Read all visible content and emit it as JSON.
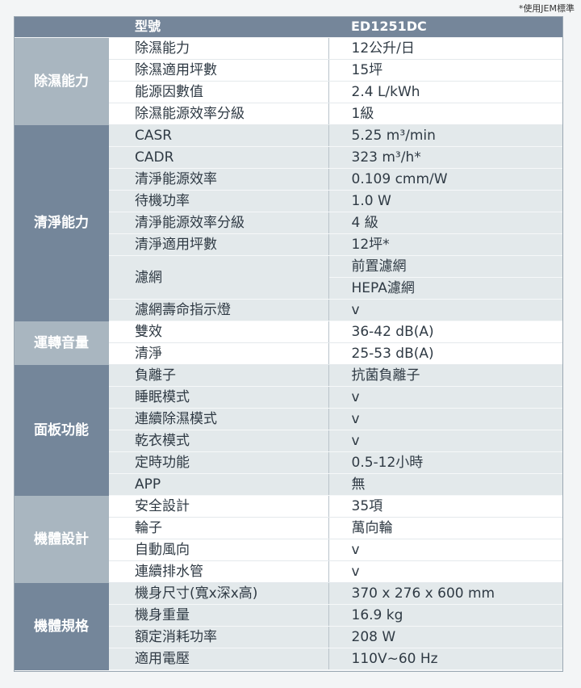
{
  "note": "*使用JEM標準",
  "header": {
    "label": "型號",
    "value": "ED1251DC"
  },
  "colors": {
    "header": "#75869a",
    "group_light": "#a9b6c0",
    "group_dark": "#74869a",
    "row_dark": "#e3e9eb",
    "row_light": "#ffffff"
  },
  "groups": [
    {
      "name": "除濕能力",
      "tone": "light",
      "rows": [
        {
          "label": "除濕能力",
          "values": [
            "12公升/日"
          ]
        },
        {
          "label": "除濕適用坪數",
          "values": [
            "15坪"
          ]
        },
        {
          "label": "能源因數值",
          "values": [
            "2.4 L/kWh"
          ]
        },
        {
          "label": "除濕能源效率分級",
          "values": [
            "1級"
          ]
        }
      ]
    },
    {
      "name": "清淨能力",
      "tone": "dark",
      "rows": [
        {
          "label": "CASR",
          "values": [
            "5.25 m³/min"
          ]
        },
        {
          "label": "CADR",
          "values": [
            "323 m³/h*"
          ]
        },
        {
          "label": "清淨能源效率",
          "values": [
            "0.109 cmm/W"
          ]
        },
        {
          "label": "待機功率",
          "values": [
            "1.0 W"
          ]
        },
        {
          "label": "清淨能源效率分級",
          "values": [
            "4 級"
          ]
        },
        {
          "label": "清淨適用坪數",
          "values": [
            "12坪*"
          ]
        },
        {
          "label": "濾網",
          "values": [
            "前置濾網",
            "HEPA濾網"
          ]
        },
        {
          "label": "濾網壽命指示燈",
          "values": [
            "v"
          ]
        }
      ]
    },
    {
      "name": "運轉音量",
      "tone": "light",
      "rows": [
        {
          "label": "雙效",
          "values": [
            "36-42 dB(A)"
          ]
        },
        {
          "label": "清淨",
          "values": [
            "25-53 dB(A)"
          ]
        }
      ]
    },
    {
      "name": "面板功能",
      "tone": "dark",
      "rows": [
        {
          "label": "負離子",
          "values": [
            "抗菌負離子"
          ]
        },
        {
          "label": "睡眠模式",
          "values": [
            "v"
          ]
        },
        {
          "label": "連續除濕模式",
          "values": [
            "v"
          ]
        },
        {
          "label": "乾衣模式",
          "values": [
            "v"
          ]
        },
        {
          "label": "定時功能",
          "values": [
            "0.5-12小時"
          ]
        },
        {
          "label": "APP",
          "values": [
            "無"
          ]
        }
      ]
    },
    {
      "name": "機體設計",
      "tone": "light",
      "rows": [
        {
          "label": "安全設計",
          "values": [
            "35項"
          ]
        },
        {
          "label": "輪子",
          "values": [
            "萬向輪"
          ]
        },
        {
          "label": "自動風向",
          "values": [
            "v"
          ]
        },
        {
          "label": "連續排水管",
          "values": [
            "v"
          ]
        }
      ]
    },
    {
      "name": "機體規格",
      "tone": "dark",
      "rows": [
        {
          "label": "機身尺寸(寬x深x高)",
          "values": [
            "370 x 276 x 600 mm"
          ]
        },
        {
          "label": "機身重量",
          "values": [
            "16.9 kg"
          ]
        },
        {
          "label": "額定消耗功率",
          "values": [
            "208 W"
          ]
        },
        {
          "label": "適用電壓",
          "values": [
            "110V~60 Hz"
          ]
        }
      ]
    }
  ]
}
